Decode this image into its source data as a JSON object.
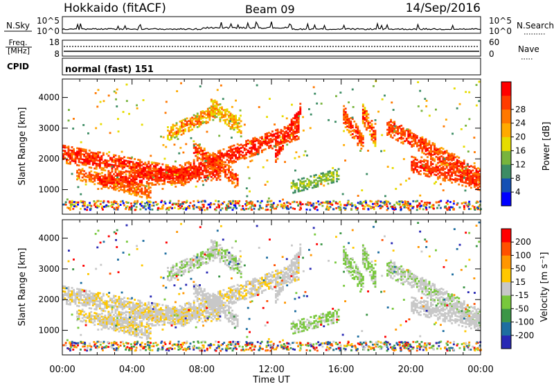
{
  "header": {
    "title": "Hokkaido (fitACF)",
    "beam": "Beam 09",
    "date": "14/Sep/2016"
  },
  "nsky_panel": {
    "left_label": "N.Sky",
    "left_ticks": [
      "10^5",
      "10^0"
    ],
    "right_ticks": [
      "10^5",
      "10^0"
    ],
    "right_label": "N.Search"
  },
  "freq_panel": {
    "left_label_line1": "Freq.",
    "left_label_line2": "[MHz]",
    "left_ticks": [
      "18",
      "8"
    ],
    "right_ticks": [
      "60",
      "0"
    ],
    "right_label": "Nave"
  },
  "cpid_panel": {
    "label": "CPID",
    "mode": "normal (fast) 151"
  },
  "chart_data": [
    {
      "type": "heatmap",
      "name": "power",
      "ylabel": "Slant Range [km]",
      "xlabel": "Time UT",
      "x_ticks": [
        "00:00",
        "04:00",
        "08:00",
        "12:00",
        "16:00",
        "20:00",
        "00:00"
      ],
      "y_ticks": [
        1000,
        2000,
        3000,
        4000
      ],
      "ylim": [
        200,
        4600
      ],
      "xlim_hours": [
        0,
        24
      ],
      "colorbar": {
        "label": "Power [dB]",
        "ticks": [
          4,
          8,
          12,
          16,
          20,
          24,
          28
        ],
        "colors": [
          "#0000ff",
          "#1450b4",
          "#3c8c64",
          "#78b43c",
          "#e6dc00",
          "#ffaa00",
          "#ff7800",
          "#ff3c00",
          "#ff0000"
        ]
      }
    },
    {
      "type": "heatmap",
      "name": "velocity",
      "ylabel": "Slant Range [km]",
      "xlabel": "Time UT",
      "x_ticks": [
        "00:00",
        "04:00",
        "08:00",
        "12:00",
        "16:00",
        "20:00",
        "00:00"
      ],
      "y_ticks": [
        1000,
        2000,
        3000,
        4000
      ],
      "ylim": [
        200,
        4600
      ],
      "xlim_hours": [
        0,
        24
      ],
      "colorbar": {
        "label": "Velocity [m s⁻¹]",
        "ticks": [
          200,
          100,
          50,
          15,
          -15,
          -50,
          -100,
          -200
        ],
        "colors": [
          "#2828b4",
          "#1e6ea0",
          "#3c9646",
          "#78c83c",
          "#c8c8c8",
          "#ffc800",
          "#ff9600",
          "#ff5000",
          "#ff0000"
        ]
      }
    }
  ],
  "bands": [
    {
      "t0": 0.0,
      "t1": 7.0,
      "r0": 2150,
      "r1": 1400,
      "w": 300,
      "c": [
        7,
        8,
        8,
        7,
        6
      ],
      "v": [
        4,
        4,
        5,
        4
      ]
    },
    {
      "t0": 0.8,
      "t1": 5.0,
      "r0": 1500,
      "r1": 850,
      "w": 200,
      "c": [
        6,
        7,
        7,
        6
      ],
      "v": [
        4,
        4,
        5
      ]
    },
    {
      "t0": 2.0,
      "t1": 9.0,
      "r0": 1250,
      "r1": 1550,
      "w": 260,
      "c": [
        7,
        8,
        8,
        7
      ],
      "v": [
        4,
        4,
        4,
        5
      ]
    },
    {
      "t0": 6.5,
      "t1": 13.5,
      "r0": 1450,
      "r1": 2900,
      "w": 280,
      "c": [
        7,
        8,
        8,
        7
      ],
      "v": [
        4,
        4,
        5,
        4
      ]
    },
    {
      "t0": 7.5,
      "t1": 10.0,
      "r0": 2300,
      "r1": 1300,
      "w": 250,
      "c": [
        6,
        7,
        8,
        7
      ],
      "v": [
        4,
        4,
        4
      ]
    },
    {
      "t0": 6.0,
      "t1": 8.7,
      "r0": 2800,
      "r1": 3500,
      "w": 240,
      "c": [
        4,
        5,
        6,
        7
      ],
      "v": [
        4,
        4,
        3
      ]
    },
    {
      "t0": 8.5,
      "t1": 10.2,
      "r0": 3700,
      "r1": 3000,
      "w": 300,
      "c": [
        4,
        5,
        6
      ],
      "v": [
        4,
        3,
        4
      ]
    },
    {
      "t0": 12.2,
      "t1": 13.6,
      "r0": 2100,
      "r1": 3550,
      "w": 230,
      "c": [
        7,
        8,
        8
      ],
      "v": [
        4,
        4,
        4
      ]
    },
    {
      "t0": 13.1,
      "t1": 15.8,
      "r0": 1050,
      "r1": 1450,
      "w": 200,
      "c": [
        3,
        3,
        4
      ],
      "v": [
        3,
        3,
        4
      ]
    },
    {
      "t0": 16.1,
      "t1": 17.3,
      "r0": 3400,
      "r1": 2400,
      "w": 320,
      "c": [
        6,
        8,
        7
      ],
      "v": [
        3,
        3,
        4
      ]
    },
    {
      "t0": 17.2,
      "t1": 18.0,
      "r0": 3450,
      "r1": 2600,
      "w": 320,
      "c": [
        5,
        7,
        8
      ],
      "v": [
        3,
        4,
        3
      ]
    },
    {
      "t0": 18.6,
      "t1": 24.0,
      "r0": 3050,
      "r1": 1350,
      "w": 300,
      "c": [
        7,
        8,
        7,
        6
      ],
      "v": [
        4,
        4,
        4,
        3
      ]
    },
    {
      "t0": 20.0,
      "t1": 24.0,
      "r0": 1800,
      "r1": 1200,
      "w": 260,
      "c": [
        7,
        7,
        8
      ],
      "v": [
        4,
        4,
        4
      ]
    }
  ]
}
